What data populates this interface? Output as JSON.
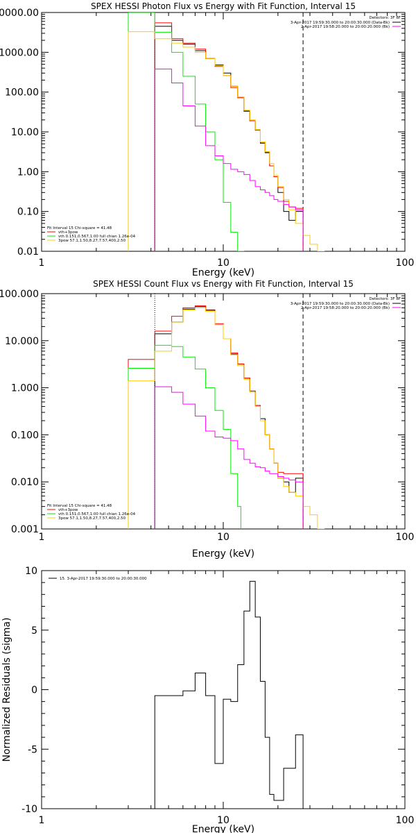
{
  "colors": {
    "observed": "#000000",
    "total": "#ff0000",
    "vth": "#00ee00",
    "3pow": "#ffcc00",
    "background": "#ff00ff",
    "marker": "#000000"
  },
  "chart_data": [
    {
      "type": "line",
      "title": "SPEX HESSI Photon Flux vs Energy with Fit Function, Interval 15",
      "xlabel": "Energy (keV)",
      "ylabel": "",
      "xscale": "log",
      "yscale": "log",
      "xlim": [
        1,
        100
      ],
      "ylim": [
        0.01,
        10000
      ],
      "x_tick_labels": [
        "1",
        "10",
        "100"
      ],
      "y_tick_labels": [
        "0.01",
        "0.10",
        "1.00",
        "10.00",
        "100.00",
        "1000.00",
        "10000.00"
      ],
      "legend_right": {
        "header": "Detectors: 3F 8F",
        "lines": [
          {
            "text": "3-Apr-2017 19:59:30.000 to 20:00:30.000 (Data-Bk)",
            "color": "#000000"
          },
          {
            "text": "2-Apr-2017 19:58:20.000 to 20:00:20.000 (Bk)",
            "color": "#ff00ff"
          }
        ]
      },
      "legend_left": {
        "header": "Fit Interval 15   Chi-square = 41.48",
        "lines": [
          {
            "text": "vth+3pow",
            "color": "#ff0000"
          },
          {
            "text": "vth 0.151,0.567,1.00  full chian 1.26e-04",
            "color": "#00ee00"
          },
          {
            "text": "3pow 57.1,1.50,8.27,7.57,400,2.50",
            "color": "#ffcc00"
          }
        ]
      },
      "vlines": [
        {
          "x": 4.2,
          "style": "dotted"
        },
        {
          "x": 27.5,
          "style": "dashed"
        }
      ],
      "series": [
        {
          "key": "observed",
          "color": "#000000",
          "edges": [
            4.2,
            5.2,
            6.0,
            7.0,
            8.0,
            9.0,
            10.0,
            11.0,
            12.0,
            13.0,
            14.0,
            15.0,
            16.0,
            17.0,
            18.0,
            19.0,
            20.0,
            21.5,
            23.0,
            25.0,
            27.5
          ],
          "values": [
            4500,
            2000,
            1600,
            1100,
            700,
            480,
            300,
            140,
            75,
            33,
            19,
            11.5,
            5.2,
            3,
            1.4,
            0.75,
            0.3,
            0.1,
            0.06,
            0.1
          ]
        },
        {
          "key": "total",
          "color": "#ff0000",
          "edges": [
            4.2,
            5.2,
            6.0,
            7.0,
            8.0,
            9.0,
            10.0,
            11.0,
            12.0,
            13.0,
            14.0,
            15.0,
            16.0,
            17.0,
            18.0,
            19.0,
            20.0,
            21.5,
            23.0,
            25.0,
            27.5
          ],
          "values": [
            5500,
            2200,
            1700,
            1200,
            700,
            440,
            260,
            130,
            72,
            34,
            19,
            11,
            5.5,
            3.1,
            1.4,
            0.75,
            0.4,
            0.18,
            0.13,
            0.12
          ]
        },
        {
          "key": "vth",
          "color": "#00ee00",
          "edges": [
            3.0,
            4.2,
            5.2,
            6.0,
            7.0,
            8.0,
            9.0,
            10.0,
            11.0,
            12.0,
            13.0
          ],
          "values": [
            10000,
            3200,
            1000,
            250,
            50,
            10,
            2,
            0.17,
            0.03,
            0.01
          ]
        },
        {
          "key": "3pow",
          "color": "#ffcc00",
          "edges": [
            3.0,
            4.2,
            5.2,
            6.0,
            7.0,
            8.0,
            9.0,
            10.0,
            11.0,
            12.0,
            13.0,
            14.0,
            15.0,
            16.0,
            17.0,
            18.0,
            19.0,
            20.0,
            21.5,
            23.0,
            25.0,
            27.5,
            30.0,
            33.0,
            36.0
          ],
          "values": [
            3300,
            2200,
            1700,
            1350,
            1000,
            700,
            460,
            260,
            140,
            75,
            35,
            20,
            11.5,
            5.6,
            3.2,
            1.6,
            0.8,
            0.42,
            0.2,
            0.11,
            0.05,
            0.025,
            0.015,
            0.01
          ]
        },
        {
          "key": "background",
          "color": "#ff00ff",
          "edges": [
            4.2,
            5.2,
            6.0,
            7.0,
            8.0,
            9.0,
            10.0,
            11.0,
            12.0,
            13.0,
            14.0,
            15.0,
            16.0,
            17.0,
            18.0,
            19.0,
            20.0,
            21.5,
            23.0,
            25.0,
            27.5
          ],
          "values": [
            380,
            170,
            45,
            14,
            4.5,
            2.5,
            1.6,
            1.15,
            1.0,
            0.85,
            0.6,
            0.42,
            0.35,
            0.3,
            0.25,
            0.2,
            0.18,
            0.15,
            0.13,
            0.11
          ]
        }
      ]
    },
    {
      "type": "line",
      "title": "SPEX HESSI Count Flux vs Energy with Fit Function, Interval 15",
      "xlabel": "Energy (keV)",
      "ylabel": "",
      "xscale": "log",
      "yscale": "log",
      "xlim": [
        1,
        100
      ],
      "ylim": [
        0.001,
        100
      ],
      "x_tick_labels": [
        "1",
        "10",
        "100"
      ],
      "y_tick_labels": [
        "0.001",
        "0.010",
        "0.100",
        "1.000",
        "10.000",
        "100.000"
      ],
      "legend_right": {
        "header": "Detectors: 3F 8F",
        "lines": [
          {
            "text": "3-Apr-2017 19:59:30.000 to 20:00:30.000 (Data-Bk)",
            "color": "#000000"
          },
          {
            "text": "2-Apr-2017 19:58:20.000 to 20:00:20.000 (Bk)",
            "color": "#ff00ff"
          }
        ]
      },
      "legend_left": {
        "header": "Fit Interval 15   Chi-square = 41.48",
        "lines": [
          {
            "text": "vth+3pow",
            "color": "#ff0000"
          },
          {
            "text": "vth 0.151,0.567,1.00  full chian 1.26e-04",
            "color": "#00ee00"
          },
          {
            "text": "3pow 57.1,1.50,8.27,7.57,400,2.50",
            "color": "#ffcc00"
          }
        ]
      },
      "vlines": [
        {
          "x": 4.2,
          "style": "dotted"
        },
        {
          "x": 27.5,
          "style": "dashed"
        }
      ],
      "series": [
        {
          "key": "observed",
          "color": "#000000",
          "edges": [
            4.2,
            5.2,
            6.0,
            7.0,
            8.0,
            9.0,
            10.0,
            11.0,
            12.0,
            13.0,
            14.0,
            15.0,
            16.0,
            17.0,
            18.0,
            19.0,
            20.0,
            21.5,
            23.0,
            25.0,
            27.5
          ],
          "values": [
            14,
            25,
            47,
            53,
            45,
            22,
            11,
            5.2,
            3.2,
            1.6,
            0.85,
            0.42,
            0.22,
            0.1,
            0.05,
            0.025,
            0.012,
            0.01,
            0.006,
            0.012
          ]
        },
        {
          "key": "total",
          "color": "#ff0000",
          "edges": [
            3.0,
            4.2,
            5.2,
            6.0,
            7.0,
            8.0,
            9.0,
            10.0,
            11.0,
            12.0,
            13.0,
            14.0,
            15.0,
            16.0,
            17.0,
            18.0,
            19.0,
            20.0,
            21.5,
            23.0,
            25.0,
            27.5
          ],
          "values": [
            4,
            16,
            33,
            50,
            55,
            44,
            23,
            11,
            5.5,
            3.2,
            1.6,
            0.85,
            0.42,
            0.2,
            0.1,
            0.05,
            0.025,
            0.016,
            0.015,
            0.015,
            0.015
          ]
        },
        {
          "key": "vth",
          "color": "#00ee00",
          "edges": [
            3.0,
            4.2,
            5.2,
            6.0,
            7.0,
            8.0,
            9.0,
            10.0,
            11.0,
            12.0,
            12.5
          ],
          "values": [
            2.6,
            8,
            7.5,
            4.5,
            2.5,
            1,
            0.33,
            0.13,
            0.015,
            0.003
          ]
        },
        {
          "key": "3pow",
          "color": "#ffcc00",
          "edges": [
            3.0,
            4.2,
            5.2,
            6.0,
            7.0,
            8.0,
            9.0,
            10.0,
            11.0,
            12.0,
            13.0,
            14.0,
            15.0,
            16.0,
            17.0,
            18.0,
            19.0,
            20.0,
            21.5,
            23.0,
            25.0,
            27.5,
            30.0,
            33.0,
            36.0
          ],
          "values": [
            1.4,
            6,
            25,
            45,
            50,
            42,
            22,
            11,
            5,
            3,
            1.5,
            0.8,
            0.4,
            0.2,
            0.1,
            0.05,
            0.025,
            0.012,
            0.008,
            0.006,
            0.005,
            0.003,
            0.002,
            0.001
          ]
        },
        {
          "key": "background",
          "color": "#ff00ff",
          "edges": [
            4.2,
            5.2,
            6.0,
            7.0,
            8.0,
            9.0,
            10.0,
            11.0,
            12.0,
            13.0,
            14.0,
            15.0,
            16.0,
            17.0,
            18.0,
            19.0,
            20.0,
            21.5,
            23.0,
            25.0,
            27.5
          ],
          "values": [
            1.05,
            0.8,
            0.45,
            0.25,
            0.12,
            0.09,
            0.085,
            0.075,
            0.05,
            0.03,
            0.025,
            0.021,
            0.02,
            0.017,
            0.015,
            0.015,
            0.013,
            0.012,
            0.011,
            0.01
          ]
        }
      ]
    },
    {
      "type": "line",
      "title": "",
      "xlabel": "Energy (keV)",
      "ylabel": "Normalized Residuals (sigma)",
      "xscale": "log",
      "yscale": "linear",
      "xlim": [
        1,
        100
      ],
      "ylim": [
        -10,
        10
      ],
      "x_tick_labels": [
        "1",
        "10",
        "100"
      ],
      "y_tick_labels": [
        "-10",
        "-5",
        "0",
        "5",
        "10"
      ],
      "y_ticks": [
        -10,
        -5,
        0,
        5,
        10
      ],
      "legend": {
        "text": "15.  3-Apr-2017 19:59:30.000 to 20:00:30.000",
        "color": "#000000"
      },
      "series": [
        {
          "key": "residuals",
          "color": "#000000",
          "edges": [
            4.2,
            5.2,
            6.0,
            7.0,
            8.0,
            9.0,
            10.0,
            11.0,
            12.0,
            13.0,
            14.0,
            15.0,
            16.0,
            17.0,
            18.0,
            19.0,
            20.0,
            21.5,
            23.0,
            25.0,
            27.5
          ],
          "values": [
            -0.5,
            -0.5,
            -0.1,
            1.4,
            -0.5,
            -6.2,
            -0.8,
            -1.0,
            2.1,
            6.6,
            9.1,
            6.1,
            0.7,
            -4.0,
            -8.8,
            -9.3,
            -9.3,
            -6.6,
            -6.6,
            -3.8
          ]
        }
      ]
    }
  ]
}
